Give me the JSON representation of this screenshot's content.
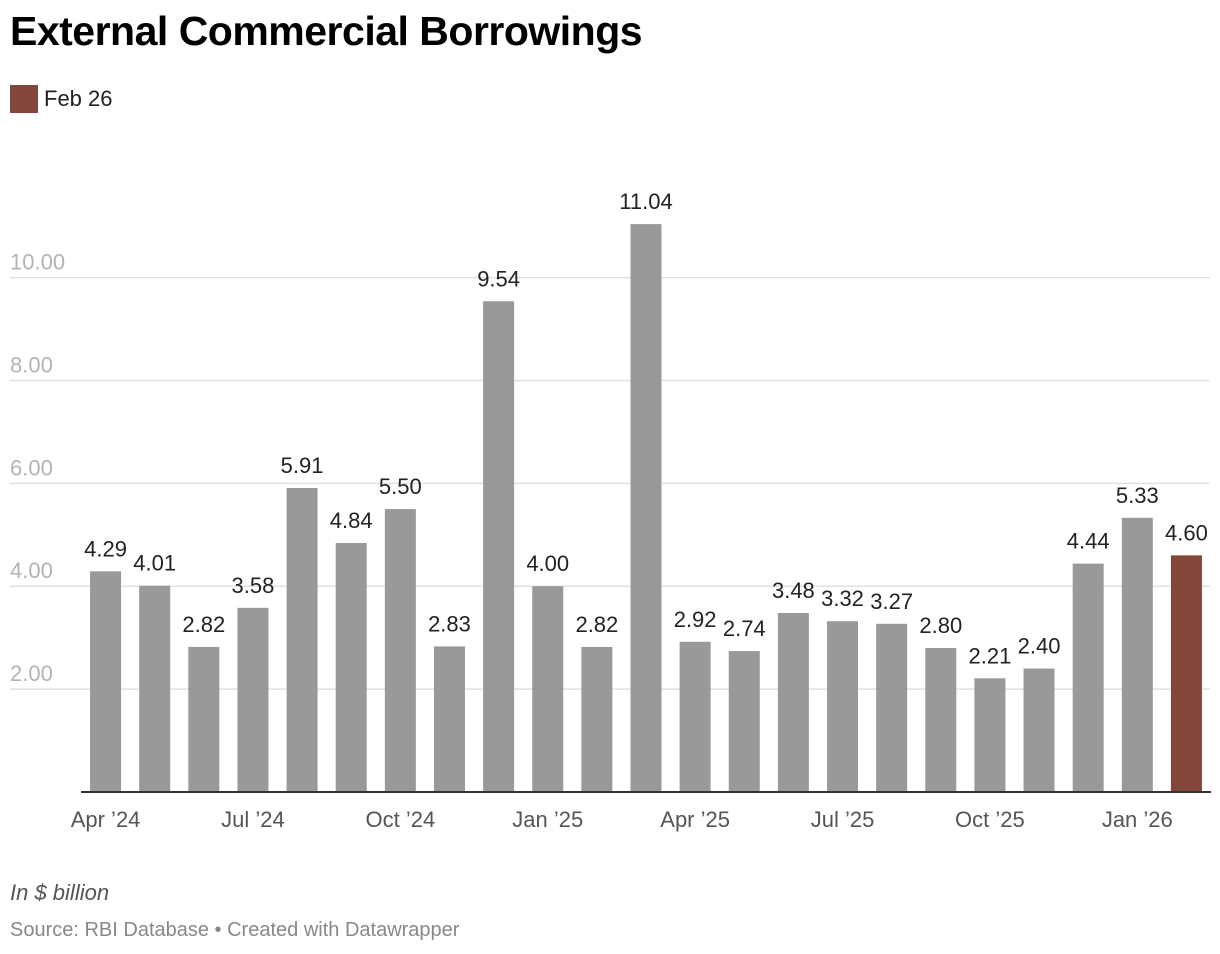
{
  "legend": {
    "label": "Feb 26"
  },
  "note": "In $ billion",
  "source": "Source: RBI Database • Created with Datawrapper",
  "colors": {
    "bar": "#999999",
    "highlight": "#82473a",
    "grid": "#e0e0e0",
    "axis": "#333333"
  },
  "chart_data": {
    "type": "bar",
    "title": "External Commercial Borrowings",
    "xlabel": "",
    "ylabel": "In $ billion",
    "ylim": [
      0,
      11.8
    ],
    "yticks": [
      {
        "value": 2,
        "label": "2.00"
      },
      {
        "value": 4,
        "label": "4.00"
      },
      {
        "value": 6,
        "label": "6.00"
      },
      {
        "value": 8,
        "label": "8.00"
      },
      {
        "value": 10,
        "label": "10.00"
      }
    ],
    "categories": [
      "Apr 2024",
      "May 2024",
      "Jun 2024",
      "Jul 2024",
      "Aug 2024",
      "Sep 2024",
      "Oct 2024",
      "Nov 2024",
      "Dec 2024",
      "Jan 2025",
      "Feb 2025",
      "Mar 2025",
      "Apr 2025",
      "May 2025",
      "Jun 2025",
      "Jul 2025",
      "Aug 2025",
      "Sep 2025",
      "Oct 2025",
      "Nov 2025",
      "Dec 2025",
      "Jan 2026",
      "Feb 2026"
    ],
    "values": [
      4.29,
      4.01,
      2.82,
      3.58,
      5.91,
      4.84,
      5.5,
      2.83,
      9.54,
      4.0,
      2.82,
      11.04,
      2.92,
      2.74,
      3.48,
      3.32,
      3.27,
      2.8,
      2.21,
      2.4,
      4.44,
      5.33,
      4.6
    ],
    "value_labels": [
      "4.29",
      "4.01",
      "2.82",
      "3.58",
      "5.91",
      "4.84",
      "5.50",
      "2.83",
      "9.54",
      "4.00",
      "2.82",
      "11.04",
      "2.92",
      "2.74",
      "3.48",
      "3.32",
      "3.27",
      "2.80",
      "2.21",
      "2.40",
      "4.44",
      "5.33",
      "4.60"
    ],
    "x_tick_labels": [
      {
        "index": 0,
        "label": "Apr ’24"
      },
      {
        "index": 3,
        "label": "Jul ’24"
      },
      {
        "index": 6,
        "label": "Oct ’24"
      },
      {
        "index": 9,
        "label": "Jan ’25"
      },
      {
        "index": 12,
        "label": "Apr ’25"
      },
      {
        "index": 15,
        "label": "Jul ’25"
      },
      {
        "index": 18,
        "label": "Oct ’25"
      },
      {
        "index": 21,
        "label": "Jan ’26"
      }
    ],
    "highlight_index": 22,
    "grid": true,
    "legend_position": "top-left"
  }
}
